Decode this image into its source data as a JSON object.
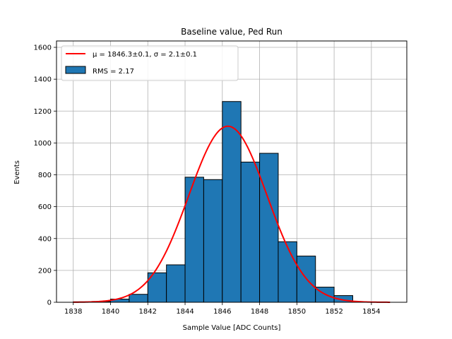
{
  "chart_data": {
    "type": "bar",
    "title": "Baseline value, Ped Run",
    "xlabel": "Sample Value [ADC Counts]",
    "ylabel": "Events",
    "xlim": [
      1837.1,
      1855.9
    ],
    "ylim": [
      0,
      1640
    ],
    "xticks": [
      1838,
      1840,
      1842,
      1844,
      1846,
      1848,
      1850,
      1852,
      1854
    ],
    "yticks": [
      0,
      200,
      400,
      600,
      800,
      1000,
      1200,
      1400,
      1600
    ],
    "grid": true,
    "legend_position": "top-left",
    "histogram": {
      "name": "RMS = 2.17",
      "color": "#1f77b4",
      "bin_edges": [
        1838,
        1839,
        1840,
        1841,
        1842,
        1843,
        1844,
        1845,
        1846,
        1847,
        1848,
        1849,
        1850,
        1851,
        1852
      ],
      "counts": [
        3,
        5,
        20,
        50,
        185,
        235,
        785,
        770,
        1260,
        880,
        935,
        380,
        290,
        95,
        42
      ]
    },
    "fit": {
      "name_prefix": "μ = 1846.3±0.1, σ = 2.1±0.1",
      "color": "#ff0000",
      "function": "gaussian",
      "mu": 1846.3,
      "sigma": 2.1,
      "amplitude": 1105,
      "x_range": [
        1838,
        1855
      ]
    }
  }
}
